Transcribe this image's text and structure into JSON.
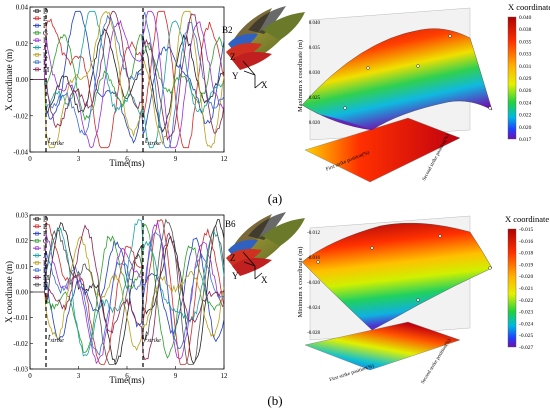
{
  "panel_a": {
    "line_chart": {
      "ylabel": "X coordinate (m)",
      "xlabel": "Time(ms)",
      "x_ticks": [
        "0",
        "3",
        "6",
        "9",
        "12"
      ],
      "y_ticks": [
        "0.04",
        "0.02",
        "0.00",
        "-0.02",
        "-0.04"
      ],
      "legend": [
        "D",
        "E",
        "F",
        "G",
        "I",
        "J",
        "K",
        "L",
        "M"
      ],
      "strike_label_1": "t",
      "strike_sub_1": "strike",
      "strike_label_2": "t",
      "strike_sub_2": "strike"
    },
    "blade_label": "B2",
    "axis_letters": {
      "z": "Z",
      "y": "Y",
      "x": "X"
    },
    "surface": {
      "colorbar_title": "X coordinate (m)",
      "colorbar_ticks": [
        "0.040",
        "0.038",
        "0.035",
        "0.033",
        "0.031",
        "0.029",
        "0.026",
        "0.024",
        "0.022",
        "0.020",
        "0.017"
      ],
      "z_label": "Maximum x coordinate (m)",
      "z_ticks": [
        "0.040",
        "0.035",
        "0.030",
        "0.025",
        "0.020"
      ],
      "axis_label_1": "First strike position(%)",
      "axis_label_2": "Second strike position(%)"
    },
    "caption": "(a)"
  },
  "panel_b": {
    "line_chart": {
      "ylabel": "X coordinate (m)",
      "xlabel": "Time(ms)",
      "x_ticks": [
        "0",
        "3",
        "6",
        "9",
        "12"
      ],
      "y_ticks": [
        "0.03",
        "0.02",
        "0.01",
        "0.00",
        "-0.01",
        "-0.02",
        "-0.03"
      ],
      "legend": [
        "D",
        "E",
        "F",
        "G",
        "I",
        "J",
        "K",
        "L",
        "M",
        "N"
      ],
      "strike_label_1": "t",
      "strike_sub_1": "strike",
      "strike_label_2": "t",
      "strike_sub_2": "strike"
    },
    "blade_label": "B6",
    "axis_letters": {
      "z": "Z",
      "y": "Y",
      "x": "X"
    },
    "surface": {
      "colorbar_title": "X coordinate (m)",
      "colorbar_ticks": [
        "-0.015",
        "-0.016",
        "-0.018",
        "-0.019",
        "-0.020",
        "-0.021",
        "-0.022",
        "-0.023",
        "-0.024",
        "-0.025",
        "-0.027"
      ],
      "z_label": "Minimum x coordinate (m)",
      "z_ticks": [
        "-0.012",
        "-0.016",
        "-0.020",
        "-0.024",
        "-0.028"
      ],
      "axis_label_1": "First strike position(%)",
      "axis_label_2": "Second strike position(%)"
    },
    "caption": "(b)"
  },
  "colors": {
    "series": [
      "#222222",
      "#d62728",
      "#1f3fbf",
      "#2ca02c",
      "#9b30d9",
      "#1aa3a3",
      "#b8a01a",
      "#3b6fd1",
      "#8b2252",
      "#555555"
    ],
    "surface_top": "#c40010",
    "surface_bottom": "#6a0fa8"
  }
}
